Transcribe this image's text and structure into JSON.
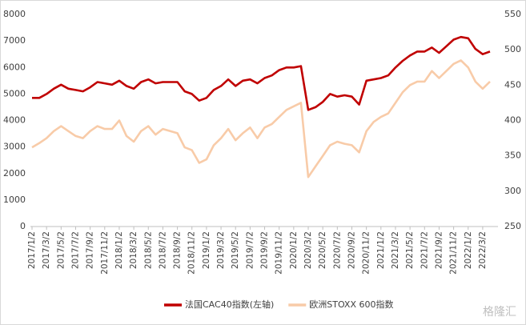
{
  "chart_data": {
    "type": "line",
    "categories": [
      "2017/1/2",
      null,
      "2017/3/2",
      null,
      "2017/5/2",
      null,
      "2017/7/2",
      null,
      "2017/9/2",
      null,
      "2017/11/2",
      null,
      "2018/1/2",
      null,
      "2018/3/2",
      null,
      "2018/5/2",
      null,
      "2018/7/2",
      null,
      "2018/9/2",
      null,
      "2018/11/2",
      null,
      "2019/1/2",
      null,
      "2019/3/2",
      null,
      "2019/5/2",
      null,
      "2019/7/2",
      null,
      "2019/9/2",
      null,
      "2019/11/2",
      null,
      "2020/1/2",
      null,
      "2020/3/2",
      null,
      "2020/5/2",
      null,
      "2020/7/2",
      null,
      "2020/9/2",
      null,
      "2020/11/2",
      null,
      "2021/1/2",
      null,
      "2021/3/2",
      null,
      "2021/5/2",
      null,
      "2021/7/2",
      null,
      "2021/9/2",
      null,
      "2021/11/2",
      null,
      "2022/1/2",
      null,
      "2022/3/2",
      null
    ],
    "series": [
      {
        "name": "法国CAC40指数(左轴)",
        "color": "#c00000",
        "axis": "y",
        "values": [
          4850,
          4850,
          5000,
          5200,
          5350,
          5200,
          5150,
          5100,
          5250,
          5450,
          5400,
          5350,
          5500,
          5300,
          5200,
          5450,
          5550,
          5400,
          5450,
          5450,
          5450,
          5100,
          5000,
          4750,
          4850,
          5150,
          5300,
          5550,
          5300,
          5500,
          5550,
          5400,
          5600,
          5700,
          5900,
          6000,
          6000,
          6050,
          4400,
          4500,
          4700,
          5000,
          4900,
          4950,
          4900,
          4600,
          5500,
          5550,
          5600,
          5700,
          6000,
          6250,
          6450,
          6600,
          6600,
          6750,
          6550,
          6800,
          7050,
          7150,
          7100,
          6700,
          6500,
          6600
        ]
      },
      {
        "name": "欧洲STOXX 600指数",
        "color": "#f8cba8",
        "axis": "y2",
        "values": [
          362,
          368,
          375,
          385,
          392,
          385,
          378,
          375,
          385,
          392,
          388,
          388,
          400,
          378,
          370,
          385,
          392,
          380,
          388,
          385,
          382,
          362,
          358,
          340,
          345,
          365,
          375,
          388,
          372,
          382,
          390,
          375,
          390,
          395,
          405,
          415,
          420,
          425,
          320,
          335,
          350,
          365,
          370,
          367,
          365,
          355,
          385,
          398,
          405,
          410,
          425,
          440,
          450,
          455,
          455,
          470,
          460,
          470,
          480,
          485,
          475,
          455,
          445,
          455
        ]
      }
    ],
    "ylim": [
      0,
      8000
    ],
    "yticks": [
      0,
      1000,
      2000,
      3000,
      4000,
      5000,
      6000,
      7000,
      8000
    ],
    "y2lim": [
      250,
      550
    ],
    "y2ticks": [
      250,
      300,
      350,
      400,
      450,
      500,
      550
    ],
    "grid": false,
    "legend": "bottom",
    "watermark": "格隆汇"
  }
}
